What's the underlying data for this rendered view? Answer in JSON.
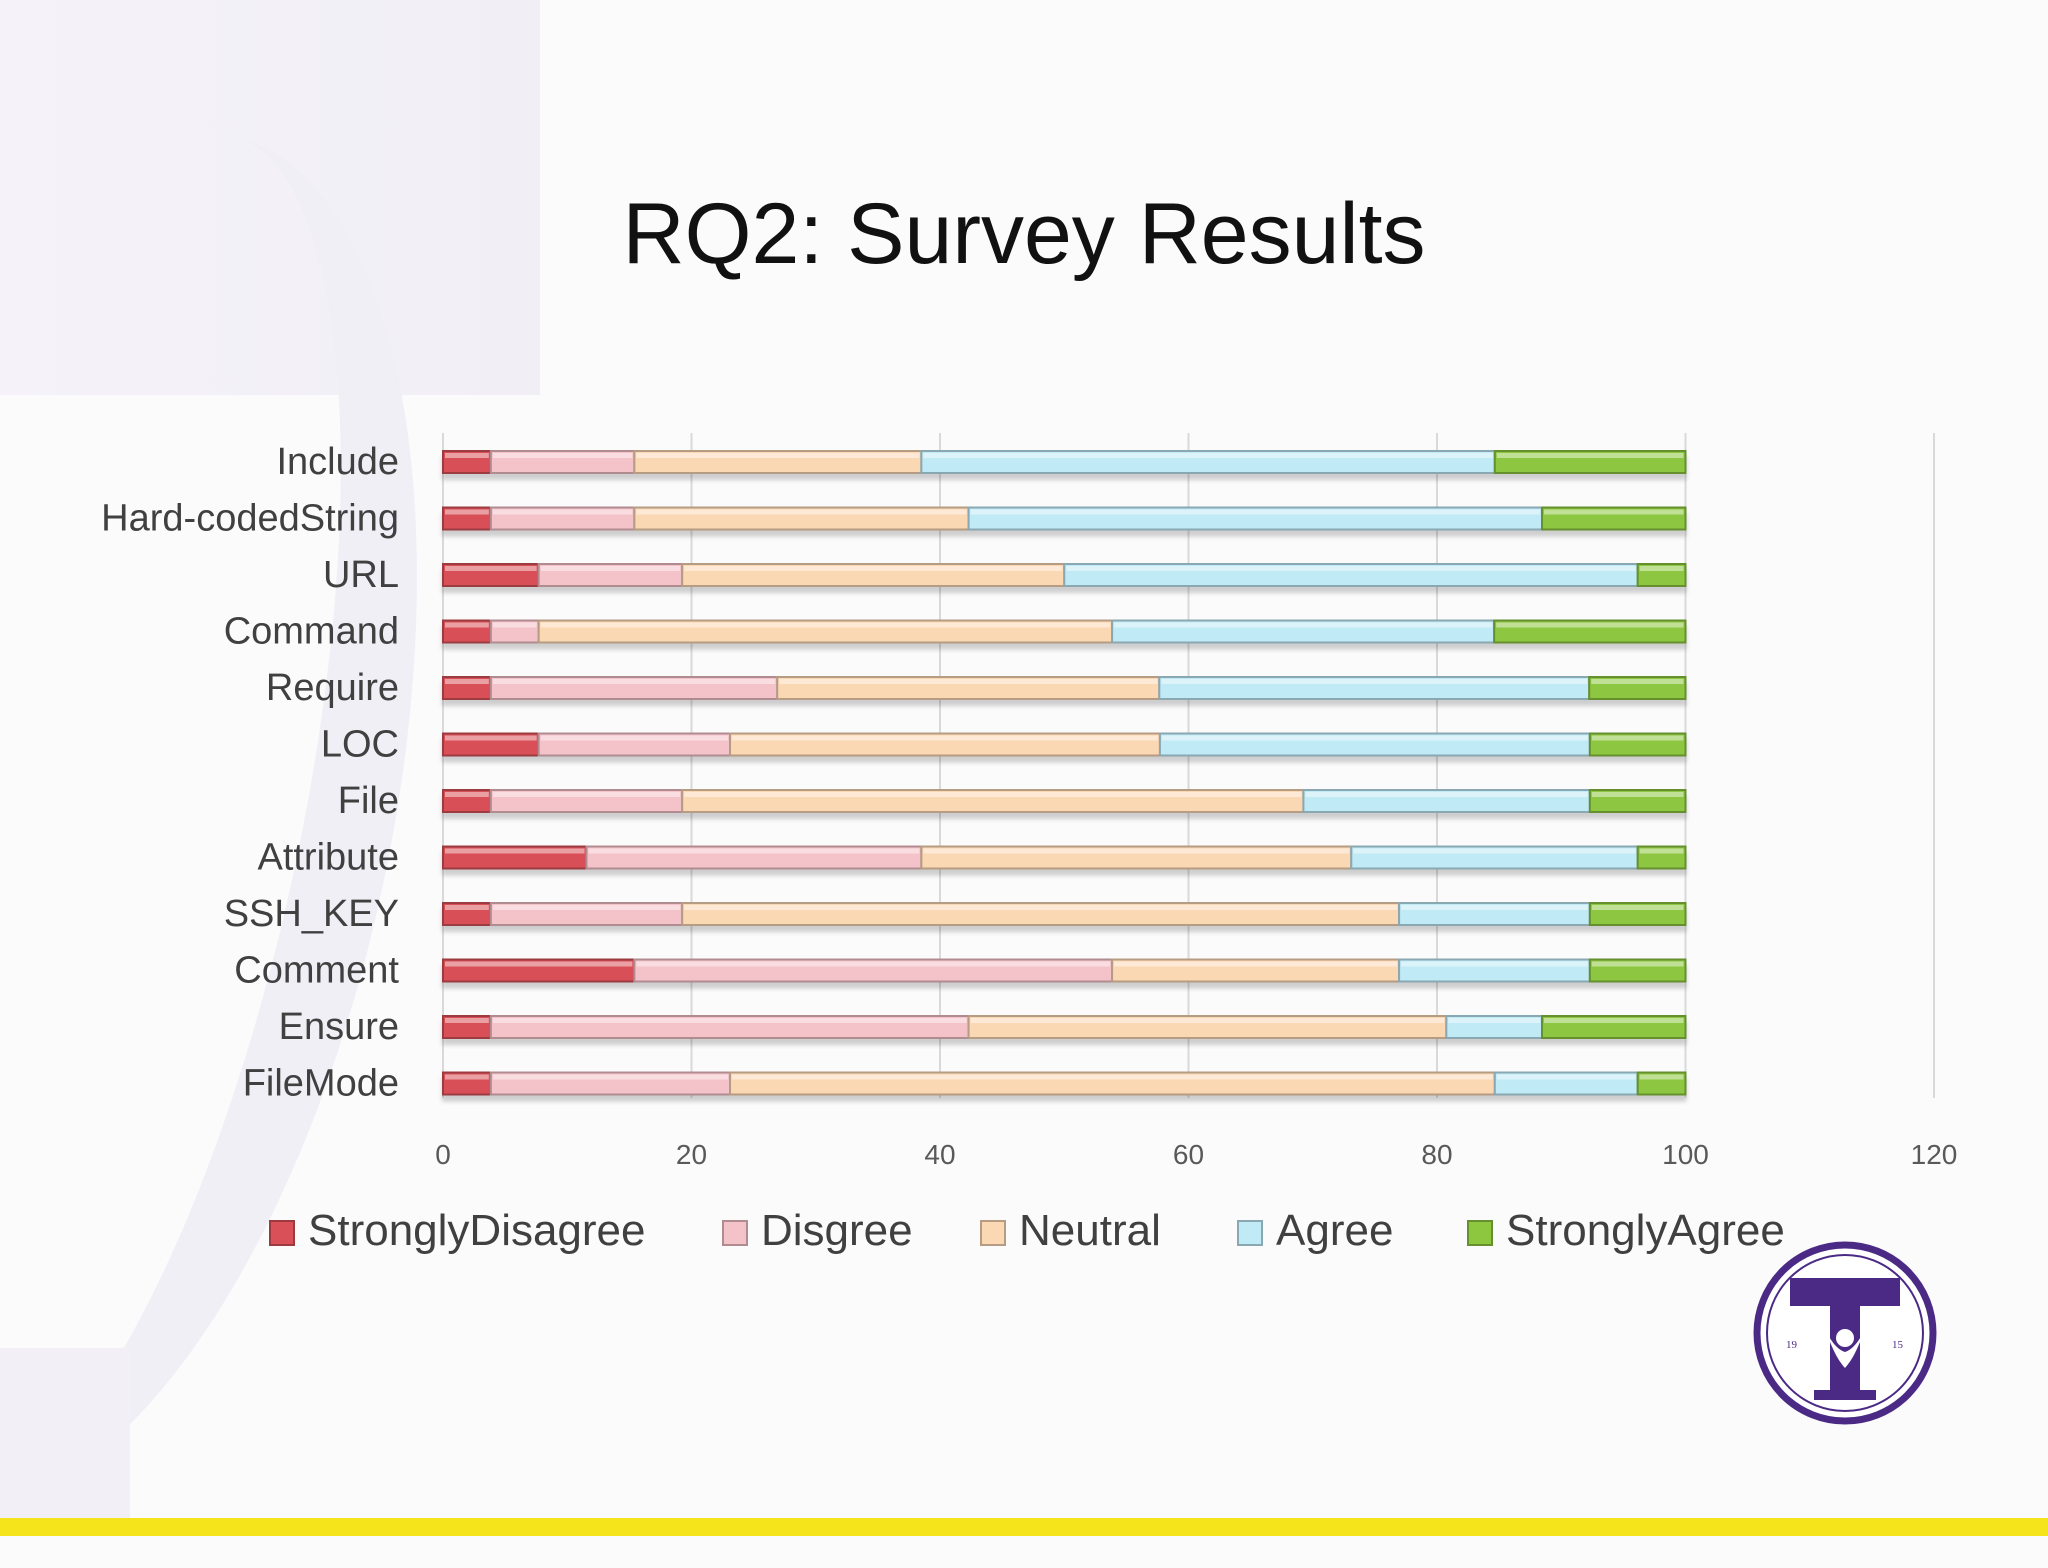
{
  "slide": {
    "title": "RQ2: Survey Results"
  },
  "colors": {
    "StronglyDisagree": "#d95058",
    "Disgree": "#f4c2c9",
    "Neutral": "#fbd8b4",
    "Agree": "#bfeaf6",
    "StronglyAgree": "#8dc63f",
    "yellow_stripe": "#f5e31c",
    "seal_purple": "#4b2a86"
  },
  "logo": {
    "name": "university-seal",
    "year_left": "19",
    "year_right": "15"
  },
  "chart_data": {
    "type": "bar",
    "orientation": "horizontal",
    "stacked": true,
    "categories": [
      "Include",
      "Hard-codedString",
      "URL",
      "Command",
      "Require",
      "LOC",
      "File",
      "Attribute",
      "SSH_KEY",
      "Comment",
      "Ensure",
      "FileMode"
    ],
    "series": [
      {
        "name": "StronglyDisagree",
        "values": [
          3.85,
          3.85,
          7.7,
          3.85,
          3.85,
          7.7,
          3.85,
          11.55,
          3.85,
          15.4,
          3.85,
          3.85
        ]
      },
      {
        "name": "Disgree",
        "values": [
          11.55,
          11.55,
          11.55,
          3.85,
          23.05,
          15.4,
          15.4,
          26.95,
          15.4,
          38.45,
          38.45,
          19.25
        ]
      },
      {
        "name": "Neutral",
        "values": [
          23.1,
          26.9,
          30.75,
          46.15,
          30.75,
          34.6,
          50,
          34.6,
          57.7,
          23.1,
          38.45,
          61.55
        ]
      },
      {
        "name": "Agree",
        "values": [
          46.15,
          46.15,
          46.15,
          30.75,
          34.6,
          34.6,
          23.05,
          23.05,
          15.35,
          15.35,
          7.7,
          11.5
        ]
      },
      {
        "name": "StronglyAgree",
        "values": [
          15.35,
          11.55,
          3.85,
          15.4,
          7.75,
          7.7,
          7.7,
          3.85,
          7.7,
          7.7,
          11.55,
          3.85
        ]
      }
    ],
    "xlim": [
      0,
      120
    ],
    "xticks": [
      "0",
      "20",
      "40",
      "60",
      "80",
      "100",
      "120"
    ],
    "grid": true,
    "legend": "bottom"
  }
}
